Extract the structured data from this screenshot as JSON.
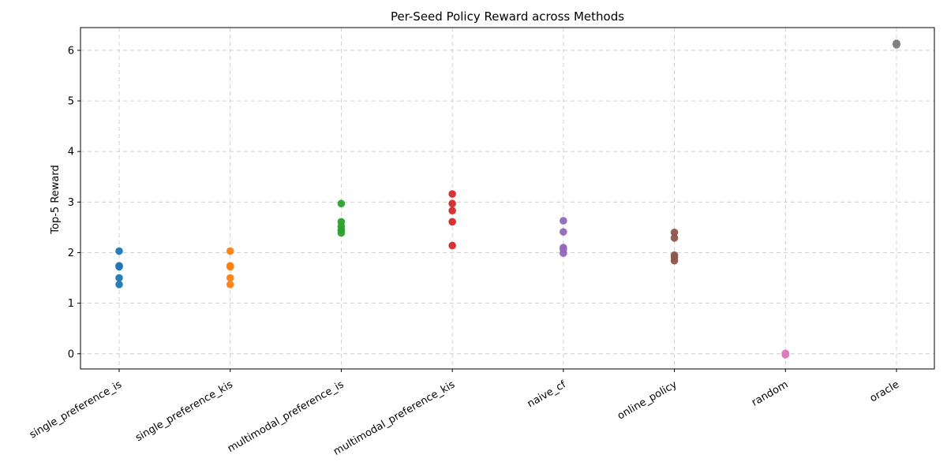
{
  "chart_data": {
    "type": "scatter",
    "title": "Per-Seed Policy Reward across Methods",
    "xlabel": "",
    "ylabel": "Top-5 Reward",
    "ylim": [
      -0.3,
      6.45
    ],
    "yticks": [
      0,
      1,
      2,
      3,
      4,
      5,
      6
    ],
    "grid": true,
    "categories": [
      "single_preference_is",
      "single_preference_kis",
      "multimodal_preference_is",
      "multimodal_preference_kis",
      "naive_cf",
      "online_policy",
      "random",
      "oracle"
    ],
    "series": [
      {
        "category": "single_preference_is",
        "color": "#1f77b4",
        "values": [
          2.03,
          1.74,
          1.72,
          1.5,
          1.37
        ]
      },
      {
        "category": "single_preference_kis",
        "color": "#ff7f0e",
        "values": [
          2.03,
          1.74,
          1.72,
          1.5,
          1.37
        ]
      },
      {
        "category": "multimodal_preference_is",
        "color": "#2ca02c",
        "values": [
          2.97,
          2.61,
          2.52,
          2.45,
          2.39
        ]
      },
      {
        "category": "multimodal_preference_kis",
        "color": "#d62728",
        "values": [
          3.16,
          2.97,
          2.83,
          2.61,
          2.14
        ]
      },
      {
        "category": "naive_cf",
        "color": "#9467bd",
        "values": [
          2.63,
          2.41,
          2.1,
          2.07,
          1.99
        ]
      },
      {
        "category": "online_policy",
        "color": "#8c564b",
        "values": [
          2.4,
          2.29,
          1.95,
          1.91,
          1.84
        ]
      },
      {
        "category": "random",
        "color": "#e377c2",
        "values": [
          0.01,
          0.0,
          -0.01,
          0.0,
          -0.02
        ]
      },
      {
        "category": "oracle",
        "color": "#7f7f7f",
        "values": [
          6.14,
          6.12,
          6.11,
          6.13,
          6.12
        ]
      }
    ]
  }
}
